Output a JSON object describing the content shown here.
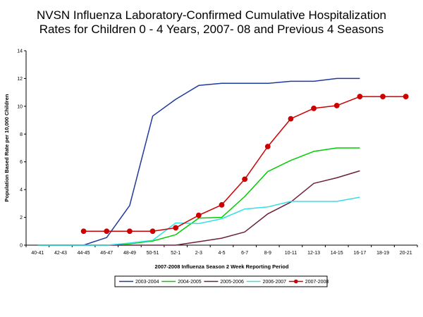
{
  "chart_data": {
    "type": "line",
    "title": "NVSN Influenza Laboratory-Confirmed Cumulative Hospitalization",
    "subtitle": "Rates for Children 0 - 4 Years, 2007- 08 and Previous 4 Seasons",
    "xlabel": "2007-2008 Influenza Season 2 Week Reporting Period",
    "ylabel": "Population Based Rate per 10,000 Children",
    "categories": [
      "40-41",
      "42-43",
      "44-45",
      "46-47",
      "48-49",
      "50-51",
      "52-1",
      "2-3",
      "4-5",
      "6-7",
      "8-9",
      "10-11",
      "12-13",
      "14-15",
      "16-17",
      "18-19",
      "20-21"
    ],
    "ylim": [
      0,
      14
    ],
    "yticks": [
      0,
      2,
      4,
      6,
      8,
      10,
      12,
      14
    ],
    "legend_position": "bottom",
    "series": [
      {
        "name": "2003-2004",
        "color": "#1f3a9e",
        "marker": "none",
        "values": [
          0,
          0,
          0,
          0.55,
          2.85,
          9.3,
          10.5,
          11.5,
          11.65,
          11.65,
          11.65,
          11.8,
          11.8,
          12.0,
          12.0,
          null,
          null
        ]
      },
      {
        "name": "2004-2005",
        "color": "#00cc00",
        "marker": "none",
        "values": [
          0,
          0,
          0,
          0,
          0.1,
          0.3,
          0.75,
          1.95,
          2.0,
          3.5,
          5.3,
          6.1,
          6.75,
          7.0,
          7.0,
          null,
          null
        ]
      },
      {
        "name": "2005-2006",
        "color": "#6b2040",
        "marker": "none",
        "values": [
          0,
          0,
          0,
          0,
          0,
          0,
          0,
          0.25,
          0.5,
          0.95,
          2.25,
          3.1,
          4.45,
          4.85,
          5.35,
          null,
          null
        ]
      },
      {
        "name": "2006-2007",
        "color": "#33e0e6",
        "marker": "none",
        "values": [
          0,
          0,
          0,
          0,
          0.15,
          0.35,
          1.6,
          1.55,
          1.9,
          2.6,
          2.75,
          3.15,
          3.15,
          3.15,
          3.45,
          null,
          null
        ]
      },
      {
        "name": "2007-2008",
        "color": "#cc0000",
        "marker": "circle",
        "values": [
          null,
          null,
          1.0,
          1.0,
          1.0,
          1.0,
          1.25,
          2.15,
          2.9,
          4.75,
          7.1,
          9.1,
          9.85,
          10.05,
          10.7,
          10.7,
          10.7
        ]
      }
    ]
  }
}
